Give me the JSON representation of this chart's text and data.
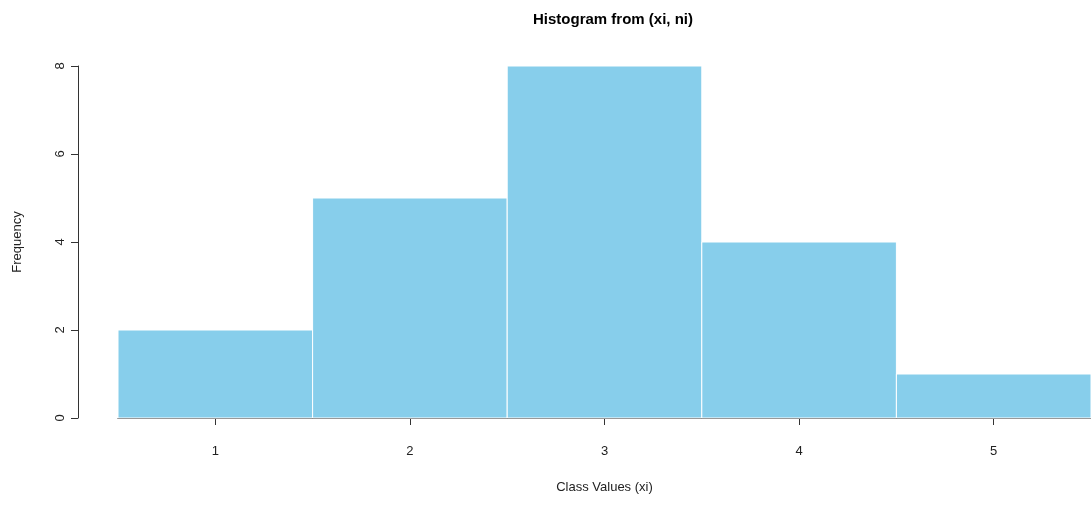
{
  "chart_data": {
    "type": "histogram",
    "title": "Histogram from (xi, ni)",
    "xlabel": "Class Values (xi)",
    "ylabel": "Frequency",
    "bins": [
      0.5,
      1.5,
      2.5,
      3.5,
      4.5,
      5.5
    ],
    "values": [
      2,
      5,
      8,
      4,
      1
    ],
    "color": "#87ceeb",
    "xlim": [
      0.5,
      5.5
    ],
    "xticks": [
      1,
      2,
      3,
      4,
      5
    ],
    "ylim": [
      0,
      8
    ],
    "yticks": [
      0,
      2,
      4,
      6,
      8
    ],
    "grid": false,
    "legend": false
  }
}
